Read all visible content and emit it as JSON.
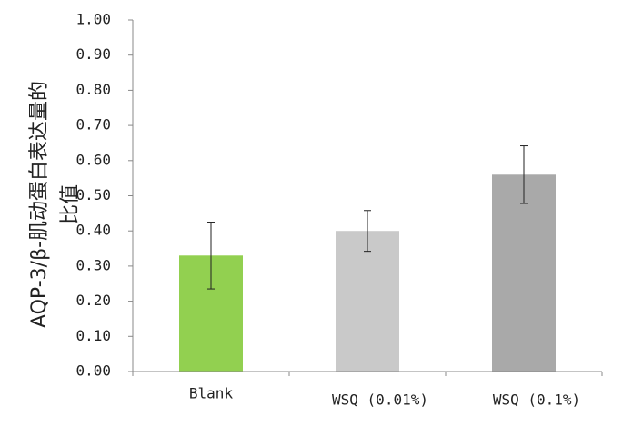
{
  "chart_data": {
    "type": "bar",
    "y_label": [
      "AQP-3/β-肌动蛋白表达量的",
      "比值"
    ],
    "categories": [
      "Blank",
      "WSQ (0.01%)",
      "WSQ (0.1%)"
    ],
    "values": [
      0.33,
      0.4,
      0.56
    ],
    "errors": [
      0.095,
      0.058,
      0.082
    ],
    "colors": [
      "#92d050",
      "#c9c9c9",
      "#a9a9a9"
    ],
    "ylim": [
      0,
      1
    ],
    "yticks": [
      {
        "value": 0,
        "label": "0.00"
      },
      {
        "value": 0.1,
        "label": "0.10"
      },
      {
        "value": 0.2,
        "label": "0.20"
      },
      {
        "value": 0.3,
        "label": "0.30"
      },
      {
        "value": 0.4,
        "label": "0.40"
      },
      {
        "value": 0.5,
        "label": "0.50"
      },
      {
        "value": 0.6,
        "label": "0.60"
      },
      {
        "value": 0.7,
        "label": "0.70"
      },
      {
        "value": 0.8,
        "label": "0.80"
      },
      {
        "value": 0.9,
        "label": "0.90"
      },
      {
        "value": 1,
        "label": "1.00"
      }
    ]
  }
}
